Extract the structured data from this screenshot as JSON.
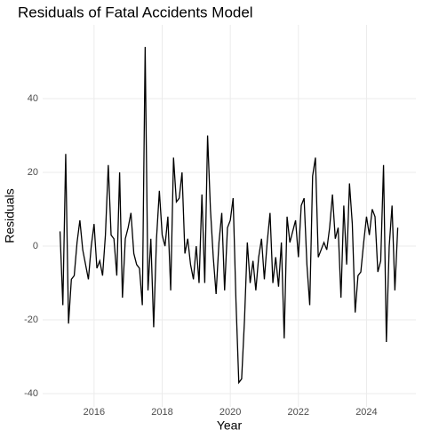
{
  "chart_data": {
    "type": "line",
    "title": "Residuals of Fatal Accidents Model",
    "x_label": "Year",
    "y_label": "Residuals",
    "x": [
      2015,
      2015.083,
      2015.167,
      2015.25,
      2015.333,
      2015.417,
      2015.5,
      2015.583,
      2015.667,
      2015.75,
      2015.833,
      2015.917,
      2016,
      2016.083,
      2016.167,
      2016.25,
      2016.333,
      2016.417,
      2016.5,
      2016.583,
      2016.667,
      2016.75,
      2016.833,
      2016.917,
      2017,
      2017.083,
      2017.167,
      2017.25,
      2017.333,
      2017.417,
      2017.5,
      2017.583,
      2017.667,
      2017.75,
      2017.833,
      2017.917,
      2018,
      2018.083,
      2018.167,
      2018.25,
      2018.333,
      2018.417,
      2018.5,
      2018.583,
      2018.667,
      2018.75,
      2018.833,
      2018.917,
      2019,
      2019.083,
      2019.167,
      2019.25,
      2019.333,
      2019.417,
      2019.5,
      2019.583,
      2019.667,
      2019.75,
      2019.833,
      2019.917,
      2020,
      2020.083,
      2020.167,
      2020.25,
      2020.333,
      2020.417,
      2020.5,
      2020.583,
      2020.667,
      2020.75,
      2020.833,
      2020.917,
      2021,
      2021.083,
      2021.167,
      2021.25,
      2021.333,
      2021.417,
      2021.5,
      2021.583,
      2021.667,
      2021.75,
      2021.833,
      2021.917,
      2022,
      2022.083,
      2022.167,
      2022.25,
      2022.333,
      2022.417,
      2022.5,
      2022.583,
      2022.667,
      2022.75,
      2022.833,
      2022.917,
      2023,
      2023.083,
      2023.167,
      2023.25,
      2023.333,
      2023.417,
      2023.5,
      2023.583,
      2023.667,
      2023.75,
      2023.833,
      2023.917,
      2024,
      2024.083,
      2024.167,
      2024.25,
      2024.333,
      2024.417,
      2024.5,
      2024.583,
      2024.667,
      2024.75,
      2024.833,
      2024.917
    ],
    "series": [
      {
        "color": "#000000",
        "values": [
          4,
          -16,
          25,
          -21,
          -9,
          -8,
          1,
          7,
          -1,
          -5,
          -9,
          0,
          6,
          -6,
          -4,
          -8,
          3,
          22,
          3,
          2,
          -8,
          20,
          -14,
          2,
          5,
          9,
          -2,
          -5,
          -6,
          -16,
          54,
          -12,
          2,
          -22,
          2,
          15,
          3,
          0,
          8,
          -12,
          24,
          12,
          13,
          20,
          -2,
          2,
          -5,
          -9,
          0,
          -10,
          14,
          -10,
          30,
          10,
          -3,
          -13,
          1,
          9,
          -12,
          5,
          7,
          13,
          -15,
          -37,
          -36,
          -20,
          1,
          -10,
          -4,
          -12,
          -3,
          2,
          -9,
          1,
          9,
          -10,
          -3,
          -11,
          1,
          -25,
          8,
          1,
          4,
          7,
          -3,
          11,
          13,
          -5,
          -16,
          19,
          24,
          -3,
          -1,
          1,
          -1,
          5,
          14,
          2,
          5,
          -14,
          11,
          -5,
          17,
          6,
          -18,
          -8,
          -7,
          1,
          8,
          3,
          10,
          8,
          -7,
          -4,
          22,
          -26,
          0,
          11,
          -12,
          5
        ]
      }
    ],
    "xlim": [
      2014.49,
      2025.45
    ],
    "xticks": [
      2016,
      2018,
      2020,
      2022,
      2024
    ],
    "ylim": [
      -43.6,
      60
    ],
    "yticks": [
      -40,
      -20,
      0,
      20,
      40
    ],
    "grid": true
  }
}
